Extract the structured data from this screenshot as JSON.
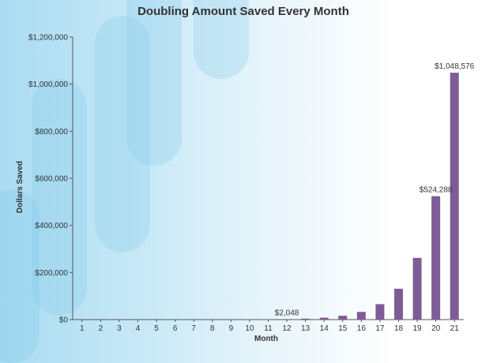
{
  "chart_data": {
    "type": "bar",
    "title": "Doubling Amount Saved Every Month",
    "xlabel": "Month",
    "ylabel": "Dollars Saved",
    "categories": [
      "1",
      "2",
      "3",
      "4",
      "5",
      "6",
      "7",
      "8",
      "9",
      "10",
      "11",
      "12",
      "13",
      "14",
      "15",
      "16",
      "17",
      "18",
      "19",
      "20",
      "21"
    ],
    "values": [
      1,
      2,
      4,
      8,
      16,
      32,
      64,
      128,
      256,
      512,
      1024,
      2048,
      4096,
      8192,
      16384,
      32768,
      65536,
      131072,
      262144,
      524288,
      1048576
    ],
    "ylim": [
      0,
      1200000
    ],
    "yticks": [
      "$0",
      "$200,000",
      "$400,000",
      "$600,000",
      "$800,000",
      "$1,000,000",
      "$1,200,000"
    ],
    "data_labels": [
      {
        "category": "12",
        "text": "$2,048"
      },
      {
        "category": "20",
        "text": "$524,288"
      },
      {
        "category": "21",
        "text": "$1,048,576"
      }
    ],
    "bar_color": "#7e5c96",
    "grid": false,
    "legend": "none"
  }
}
